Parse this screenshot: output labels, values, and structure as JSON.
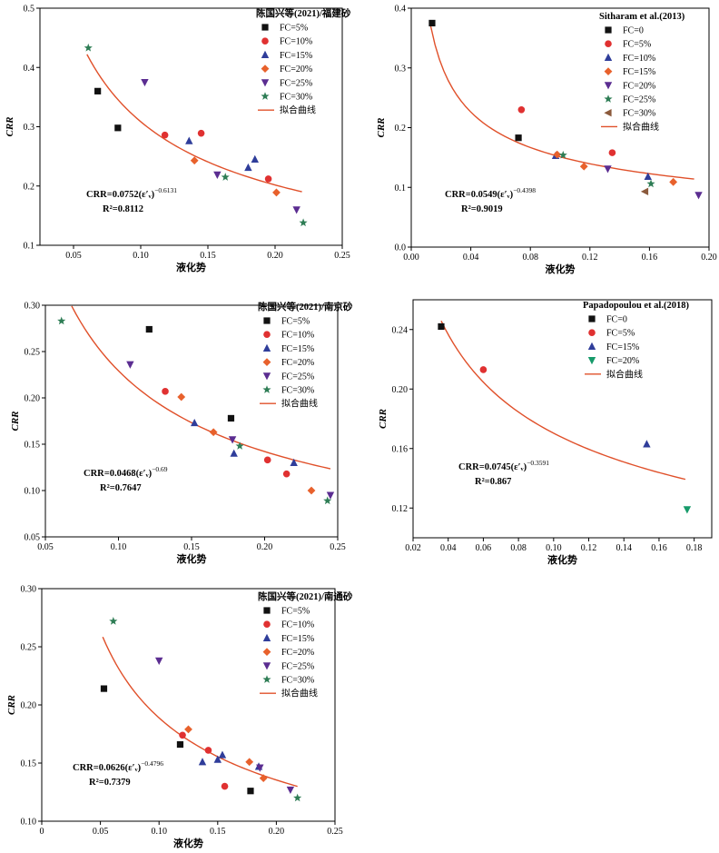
{
  "colors": {
    "FC=0": "#111111",
    "FC=5%": "#111111",
    "FC=10%": "#e03131",
    "FC=15%": "#2f3d9a",
    "FC=20%": "#e8612c",
    "FC=25%": "#5b2d91",
    "FC=30%": "#2e7d55",
    "fit": "#e0502a"
  },
  "chart_data": [
    {
      "type": "scatter",
      "title": "陈国兴等(2021)/福建砂",
      "xlabel": "液化势",
      "ylabel": "CRR",
      "xlim": [
        0.025,
        0.25
      ],
      "ylim": [
        0.1,
        0.5
      ],
      "xticks": [
        "0.05",
        "0.10",
        "0.15",
        "0.20",
        "0.25"
      ],
      "yticks": [
        "0.1",
        "0.2",
        "0.3",
        "0.4",
        "0.5"
      ],
      "legend_position": "top-right",
      "fit_label": "拟合曲线",
      "equation_base": "CRR=0.0752(ε′ᵥ)",
      "equation_exp": "−0.6131",
      "r2": "R²=0.8112",
      "fit": {
        "a": 0.0752,
        "b": -0.6131,
        "x_range": [
          0.06,
          0.22
        ]
      },
      "series": [
        {
          "name": "FC=5%",
          "marker": "square",
          "color": "#111111",
          "points": [
            [
              0.068,
              0.36
            ],
            [
              0.083,
              0.298
            ]
          ]
        },
        {
          "name": "FC=10%",
          "marker": "circle",
          "color": "#e03131",
          "points": [
            [
              0.118,
              0.286
            ],
            [
              0.145,
              0.289
            ],
            [
              0.195,
              0.212
            ]
          ]
        },
        {
          "name": "FC=15%",
          "marker": "triangle-up",
          "color": "#2f3d9a",
          "points": [
            [
              0.136,
              0.276
            ],
            [
              0.18,
              0.231
            ],
            [
              0.185,
              0.245
            ]
          ]
        },
        {
          "name": "FC=20%",
          "marker": "diamond",
          "color": "#e8612c",
          "points": [
            [
              0.14,
              0.243
            ],
            [
              0.201,
              0.189
            ]
          ]
        },
        {
          "name": "FC=25%",
          "marker": "triangle-down",
          "color": "#5b2d91",
          "points": [
            [
              0.103,
              0.375
            ],
            [
              0.157,
              0.219
            ],
            [
              0.216,
              0.16
            ]
          ]
        },
        {
          "name": "FC=30%",
          "marker": "star",
          "color": "#2e7d55",
          "points": [
            [
              0.061,
              0.433
            ],
            [
              0.163,
              0.215
            ],
            [
              0.221,
              0.138
            ]
          ]
        }
      ]
    },
    {
      "type": "scatter",
      "title": "Sitharam et al.(2013)",
      "xlabel": "液化势",
      "ylabel": "CRR",
      "xlim": [
        0.0,
        0.2
      ],
      "ylim": [
        0.0,
        0.4
      ],
      "xticks": [
        "0.00",
        "0.04",
        "0.08",
        "0.12",
        "0.16",
        "0.20"
      ],
      "yticks": [
        "0.0",
        "0.1",
        "0.2",
        "0.3",
        "0.4"
      ],
      "legend_position": "top-right",
      "fit_label": "拟合曲线",
      "equation_base": "CRR=0.0549(ε′ᵥ)",
      "equation_exp": "−0.4398",
      "r2": "R²=0.9019",
      "fit": {
        "a": 0.0549,
        "b": -0.4398,
        "x_range": [
          0.013,
          0.19
        ]
      },
      "series": [
        {
          "name": "FC=0",
          "marker": "square",
          "color": "#111111",
          "points": [
            [
              0.014,
              0.375
            ],
            [
              0.072,
              0.183
            ]
          ]
        },
        {
          "name": "FC=5%",
          "marker": "circle",
          "color": "#e03131",
          "points": [
            [
              0.074,
              0.23
            ],
            [
              0.135,
              0.158
            ]
          ]
        },
        {
          "name": "FC=10%",
          "marker": "triangle-up",
          "color": "#2f3d9a",
          "points": [
            [
              0.097,
              0.153
            ],
            [
              0.159,
              0.118
            ]
          ]
        },
        {
          "name": "FC=15%",
          "marker": "diamond",
          "color": "#e8612c",
          "points": [
            [
              0.098,
              0.155
            ],
            [
              0.116,
              0.135
            ],
            [
              0.176,
              0.109
            ]
          ]
        },
        {
          "name": "FC=20%",
          "marker": "triangle-down",
          "color": "#5b2d91",
          "points": [
            [
              0.132,
              0.131
            ],
            [
              0.193,
              0.087
            ]
          ]
        },
        {
          "name": "FC=25%",
          "marker": "star",
          "color": "#2e7d55",
          "points": [
            [
              0.102,
              0.154
            ],
            [
              0.161,
              0.106
            ]
          ]
        },
        {
          "name": "FC=30%",
          "marker": "triangle-left",
          "color": "#8b5a3c",
          "points": [
            [
              0.157,
              0.093
            ]
          ]
        }
      ]
    },
    {
      "type": "scatter",
      "title": "陈国兴等(2021)/南京砂",
      "xlabel": "液化势",
      "ylabel": "CRR",
      "xlim": [
        0.05,
        0.25
      ],
      "ylim": [
        0.05,
        0.3
      ],
      "xticks": [
        "0.05",
        "0.10",
        "0.15",
        "0.20",
        "0.25"
      ],
      "yticks": [
        "0.05",
        "0.10",
        "0.15",
        "0.20",
        "0.25",
        "0.30"
      ],
      "legend_position": "top-right",
      "fit_label": "拟合曲线",
      "equation_base": "CRR=0.0468(ε′ᵥ)",
      "equation_exp": "−0.69",
      "r2": "R²=0.7647",
      "fit": {
        "a": 0.0468,
        "b": -0.69,
        "x_range": [
          0.068,
          0.245
        ]
      },
      "series": [
        {
          "name": "FC=5%",
          "marker": "square",
          "color": "#111111",
          "points": [
            [
              0.121,
              0.274
            ],
            [
              0.177,
              0.178
            ]
          ]
        },
        {
          "name": "FC=10%",
          "marker": "circle",
          "color": "#e03131",
          "points": [
            [
              0.132,
              0.207
            ],
            [
              0.202,
              0.133
            ],
            [
              0.215,
              0.118
            ]
          ]
        },
        {
          "name": "FC=15%",
          "marker": "triangle-up",
          "color": "#2f3d9a",
          "points": [
            [
              0.152,
              0.173
            ],
            [
              0.179,
              0.14
            ],
            [
              0.22,
              0.13
            ]
          ]
        },
        {
          "name": "FC=20%",
          "marker": "diamond",
          "color": "#e8612c",
          "points": [
            [
              0.143,
              0.201
            ],
            [
              0.165,
              0.163
            ],
            [
              0.232,
              0.1
            ]
          ]
        },
        {
          "name": "FC=25%",
          "marker": "triangle-down",
          "color": "#5b2d91",
          "points": [
            [
              0.108,
              0.236
            ],
            [
              0.178,
              0.155
            ],
            [
              0.245,
              0.095
            ]
          ]
        },
        {
          "name": "FC=30%",
          "marker": "star",
          "color": "#2e7d55",
          "points": [
            [
              0.061,
              0.283
            ],
            [
              0.183,
              0.148
            ],
            [
              0.243,
              0.089
            ]
          ]
        }
      ]
    },
    {
      "type": "scatter",
      "title": "Papadopoulou et al.(2018)",
      "xlabel": "液化势",
      "ylabel": "CRR",
      "xlim": [
        0.02,
        0.19
      ],
      "ylim": [
        0.1,
        0.26
      ],
      "xticks": [
        "0.02",
        "0.04",
        "0.06",
        "0.08",
        "0.10",
        "0.12",
        "0.14",
        "0.16",
        "0.18"
      ],
      "yticks": [
        "0.12",
        "0.16",
        "0.20",
        "0.24"
      ],
      "legend_position": "top-right",
      "fit_label": "拟合曲线",
      "equation_base": "CRR=0.0745(ε′ᵥ)",
      "equation_exp": "−0.3591",
      "r2": "R²=0.867",
      "fit": {
        "a": 0.0745,
        "b": -0.3591,
        "x_range": [
          0.036,
          0.175
        ]
      },
      "series": [
        {
          "name": "FC=0",
          "marker": "square",
          "color": "#111111",
          "points": [
            [
              0.036,
              0.242
            ]
          ]
        },
        {
          "name": "FC=5%",
          "marker": "circle",
          "color": "#e03131",
          "points": [
            [
              0.06,
              0.213
            ]
          ]
        },
        {
          "name": "FC=15%",
          "marker": "triangle-up",
          "color": "#2f3d9a",
          "points": [
            [
              0.153,
              0.163
            ]
          ]
        },
        {
          "name": "FC=20%",
          "marker": "triangle-down",
          "color": "#169a6a",
          "points": [
            [
              0.176,
              0.119
            ]
          ]
        }
      ]
    },
    {
      "type": "scatter",
      "title": "陈国兴等(2021)/南通砂",
      "xlabel": "液化势",
      "ylabel": "CRR",
      "xlim": [
        0.0,
        0.25
      ],
      "ylim": [
        0.1,
        0.3
      ],
      "xticks": [
        "0",
        "0.05",
        "0.10",
        "0.15",
        "0.20",
        "0.25"
      ],
      "yticks": [
        "0.10",
        "0.15",
        "0.20",
        "0.25",
        "0.30"
      ],
      "legend_position": "top-right",
      "fit_label": "拟合曲线",
      "equation_base": "CRR=0.0626(ε′ᵥ)",
      "equation_exp": "−0.4796",
      "r2": "R²=0.7379",
      "fit": {
        "a": 0.0626,
        "b": -0.4796,
        "x_range": [
          0.052,
          0.218
        ]
      },
      "series": [
        {
          "name": "FC=5%",
          "marker": "square",
          "color": "#111111",
          "points": [
            [
              0.053,
              0.214
            ],
            [
              0.118,
              0.166
            ],
            [
              0.178,
              0.126
            ]
          ]
        },
        {
          "name": "FC=10%",
          "marker": "circle",
          "color": "#e03131",
          "points": [
            [
              0.12,
              0.174
            ],
            [
              0.142,
              0.161
            ],
            [
              0.156,
              0.13
            ]
          ]
        },
        {
          "name": "FC=15%",
          "marker": "triangle-up",
          "color": "#2f3d9a",
          "points": [
            [
              0.137,
              0.151
            ],
            [
              0.15,
              0.153
            ],
            [
              0.154,
              0.157
            ],
            [
              0.185,
              0.147
            ]
          ]
        },
        {
          "name": "FC=20%",
          "marker": "diamond",
          "color": "#e8612c",
          "points": [
            [
              0.125,
              0.179
            ],
            [
              0.177,
              0.151
            ],
            [
              0.189,
              0.137
            ]
          ]
        },
        {
          "name": "FC=25%",
          "marker": "triangle-down",
          "color": "#5b2d91",
          "points": [
            [
              0.1,
              0.238
            ],
            [
              0.186,
              0.146
            ],
            [
              0.212,
              0.127
            ]
          ]
        },
        {
          "name": "FC=30%",
          "marker": "star",
          "color": "#2e7d55",
          "points": [
            [
              0.061,
              0.272
            ],
            [
              0.218,
              0.12
            ]
          ]
        }
      ]
    }
  ]
}
